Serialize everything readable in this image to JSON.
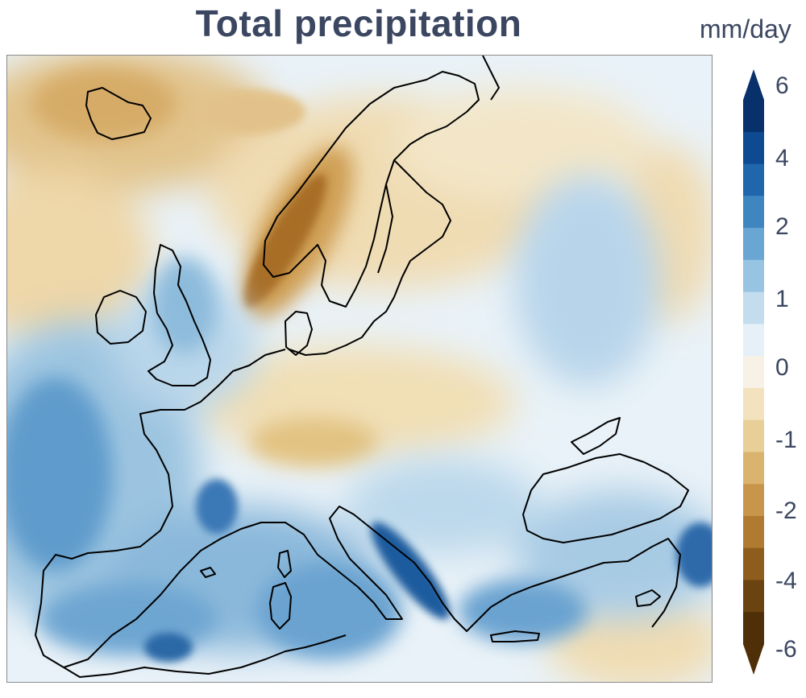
{
  "title": "Total precipitation",
  "colorbar": {
    "unit": "mm/day",
    "ticks": [
      "6",
      "4",
      "2",
      "1",
      "0",
      "-1",
      "-2",
      "-4",
      "-6"
    ],
    "colors": [
      "#08306b",
      "#0d4a91",
      "#1f66ad",
      "#3f86c1",
      "#69a6d3",
      "#97c4e2",
      "#c3dcee",
      "#e6f0f8",
      "#f7f1e6",
      "#f2e2bd",
      "#e8cf98",
      "#dab46e",
      "#c8964a",
      "#b07a30",
      "#8e5d1e",
      "#6b4310",
      "#4f2f08"
    ],
    "extend": "both"
  },
  "map": {
    "region": "Europe",
    "ocean_color": "#e9f2f8",
    "coastline_color": "#000000"
  }
}
